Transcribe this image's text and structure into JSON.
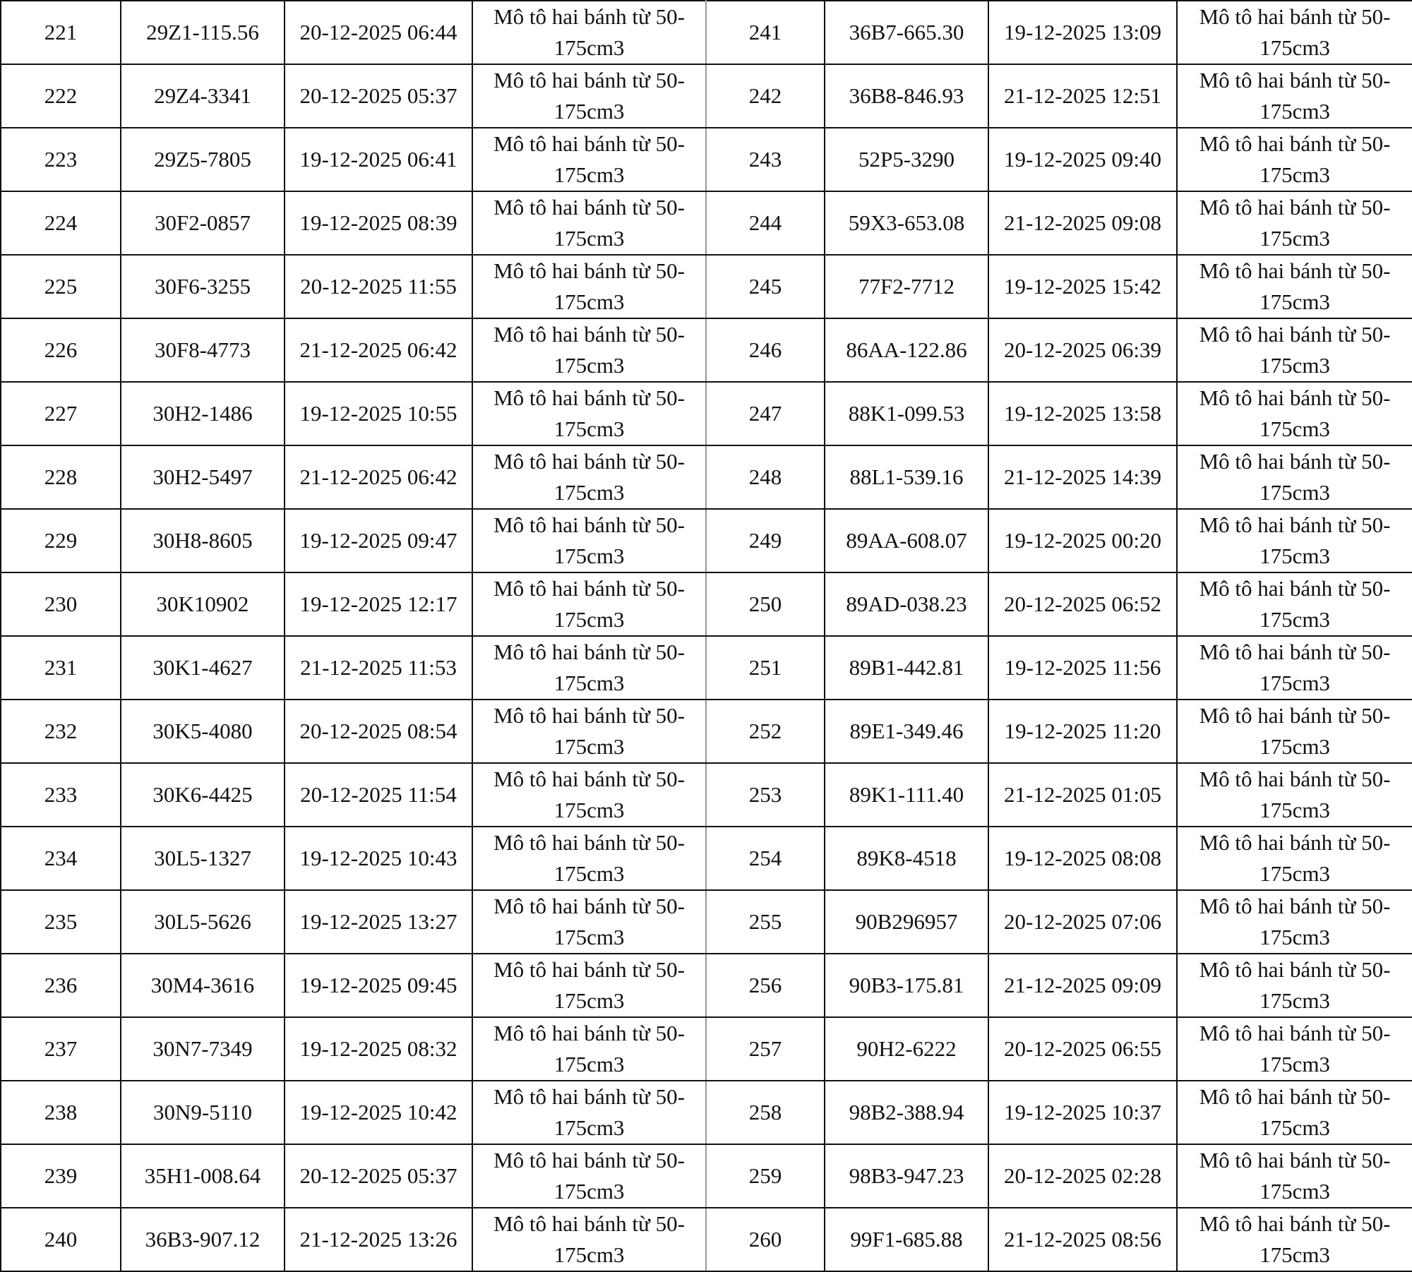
{
  "table": {
    "rows": [
      [
        "221",
        "29Z1-115.56",
        "20-12-2025 06:44",
        "Mô tô hai bánh từ 50-175cm3",
        "241",
        "36B7-665.30",
        "19-12-2025 13:09",
        "Mô tô hai bánh từ 50-175cm3"
      ],
      [
        "222",
        "29Z4-3341",
        "20-12-2025 05:37",
        "Mô tô hai bánh từ 50-175cm3",
        "242",
        "36B8-846.93",
        "21-12-2025 12:51",
        "Mô tô hai bánh từ 50-175cm3"
      ],
      [
        "223",
        "29Z5-7805",
        "19-12-2025 06:41",
        "Mô tô hai bánh từ 50-175cm3",
        "243",
        "52P5-3290",
        "19-12-2025 09:40",
        "Mô tô hai bánh từ 50-175cm3"
      ],
      [
        "224",
        "30F2-0857",
        "19-12-2025 08:39",
        "Mô tô hai bánh từ 50-175cm3",
        "244",
        "59X3-653.08",
        "21-12-2025 09:08",
        "Mô tô hai bánh từ 50-175cm3"
      ],
      [
        "225",
        "30F6-3255",
        "20-12-2025 11:55",
        "Mô tô hai bánh từ 50-175cm3",
        "245",
        "77F2-7712",
        "19-12-2025 15:42",
        "Mô tô hai bánh từ 50-175cm3"
      ],
      [
        "226",
        "30F8-4773",
        "21-12-2025 06:42",
        "Mô tô hai bánh từ 50-175cm3",
        "246",
        "86AA-122.86",
        "20-12-2025 06:39",
        "Mô tô hai bánh từ 50-175cm3"
      ],
      [
        "227",
        "30H2-1486",
        "19-12-2025 10:55",
        "Mô tô hai bánh từ 50-175cm3",
        "247",
        "88K1-099.53",
        "19-12-2025 13:58",
        "Mô tô hai bánh từ 50-175cm3"
      ],
      [
        "228",
        "30H2-5497",
        "21-12-2025 06:42",
        "Mô tô hai bánh từ 50-175cm3",
        "248",
        "88L1-539.16",
        "21-12-2025 14:39",
        "Mô tô hai bánh từ 50-175cm3"
      ],
      [
        "229",
        "30H8-8605",
        "19-12-2025 09:47",
        "Mô tô hai bánh từ 50-175cm3",
        "249",
        "89AA-608.07",
        "19-12-2025 00:20",
        "Mô tô hai bánh từ 50-175cm3"
      ],
      [
        "230",
        "30K10902",
        "19-12-2025 12:17",
        "Mô tô hai bánh từ 50-175cm3",
        "250",
        "89AD-038.23",
        "20-12-2025 06:52",
        "Mô tô hai bánh từ 50-175cm3"
      ],
      [
        "231",
        "30K1-4627",
        "21-12-2025 11:53",
        "Mô tô hai bánh từ 50-175cm3",
        "251",
        "89B1-442.81",
        "19-12-2025 11:56",
        "Mô tô hai bánh từ 50-175cm3"
      ],
      [
        "232",
        "30K5-4080",
        "20-12-2025 08:54",
        "Mô tô hai bánh từ 50-175cm3",
        "252",
        "89E1-349.46",
        "19-12-2025 11:20",
        "Mô tô hai bánh từ 50-175cm3"
      ],
      [
        "233",
        "30K6-4425",
        "20-12-2025 11:54",
        "Mô tô hai bánh từ 50-175cm3",
        "253",
        "89K1-111.40",
        "21-12-2025 01:05",
        "Mô tô hai bánh từ 50-175cm3"
      ],
      [
        "234",
        "30L5-1327",
        "19-12-2025 10:43",
        "Mô tô hai bánh từ 50-175cm3",
        "254",
        "89K8-4518",
        "19-12-2025 08:08",
        "Mô tô hai bánh từ 50-175cm3"
      ],
      [
        "235",
        "30L5-5626",
        "19-12-2025 13:27",
        "Mô tô hai bánh từ 50-175cm3",
        "255",
        "90B296957",
        "20-12-2025 07:06",
        "Mô tô hai bánh từ 50-175cm3"
      ],
      [
        "236",
        "30M4-3616",
        "19-12-2025 09:45",
        "Mô tô hai bánh từ 50-175cm3",
        "256",
        "90B3-175.81",
        "21-12-2025 09:09",
        "Mô tô hai bánh từ 50-175cm3"
      ],
      [
        "237",
        "30N7-7349",
        "19-12-2025 08:32",
        "Mô tô hai bánh từ 50-175cm3",
        "257",
        "90H2-6222",
        "20-12-2025 06:55",
        "Mô tô hai bánh từ 50-175cm3"
      ],
      [
        "238",
        "30N9-5110",
        "19-12-2025 10:42",
        "Mô tô hai bánh từ 50-175cm3",
        "258",
        "98B2-388.94",
        "19-12-2025 10:37",
        "Mô tô hai bánh từ 50-175cm3"
      ],
      [
        "239",
        "35H1-008.64",
        "20-12-2025 05:37",
        "Mô tô hai bánh từ 50-175cm3",
        "259",
        "98B3-947.23",
        "20-12-2025 02:28",
        "Mô tô hai bánh từ 50-175cm3"
      ],
      [
        "240",
        "36B3-907.12",
        "21-12-2025 13:26",
        "Mô tô hai bánh từ 50-175cm3",
        "260",
        "99F1-685.88",
        "21-12-2025 08:56",
        "Mô tô hai bánh từ 50-175cm3"
      ]
    ]
  }
}
